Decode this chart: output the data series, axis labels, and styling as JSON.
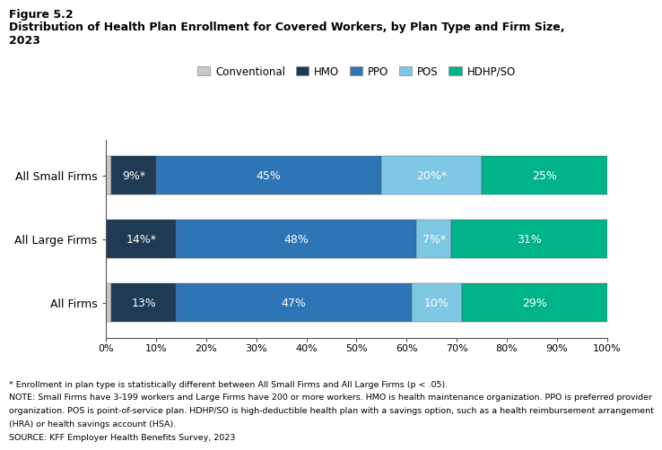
{
  "title_line1": "Figure 5.2",
  "title_line2": "Distribution of Health Plan Enrollment for Covered Workers, by Plan Type and Firm Size,",
  "title_line3": "2023",
  "categories": [
    "All Small Firms",
    "All Large Firms",
    "All Firms"
  ],
  "plan_types": [
    "Conventional",
    "HMO",
    "PPO",
    "POS",
    "HDHP/SO"
  ],
  "colors": [
    "#c8c8c8",
    "#1e3a54",
    "#2e75b6",
    "#7ec8e3",
    "#00b388"
  ],
  "values": [
    [
      1,
      9,
      45,
      20,
      25
    ],
    [
      0,
      14,
      48,
      7,
      31
    ],
    [
      1,
      13,
      47,
      10,
      29
    ]
  ],
  "labels": [
    [
      "",
      "9%*",
      "45%",
      "20%*",
      "25%"
    ],
    [
      "",
      "14%*",
      "48%",
      "7%*",
      "31%"
    ],
    [
      "",
      "13%",
      "47%",
      "10%",
      "29%"
    ]
  ],
  "footnote1": "* Enrollment in plan type is statistically different between All Small Firms and All Large Firms (p < .05).",
  "footnote2": "NOTE: Small Firms have 3-199 workers and Large Firms have 200 or more workers. HMO is health maintenance organization. PPO is preferred provider",
  "footnote3": "organization. POS is point-of-service plan. HDHP/SO is high-deductible health plan with a savings option, such as a health reimbursement arrangement",
  "footnote4": "(HRA) or health savings account (HSA).",
  "footnote5": "SOURCE: KFF Employer Health Benefits Survey, 2023",
  "legend_labels": [
    "Conventional",
    "HMO",
    "PPO",
    "POS",
    "HDHP/SO"
  ],
  "bar_height": 0.6,
  "background_color": "#ffffff",
  "text_color": "#000000",
  "label_fontsize": 9,
  "tick_fontsize": 8
}
